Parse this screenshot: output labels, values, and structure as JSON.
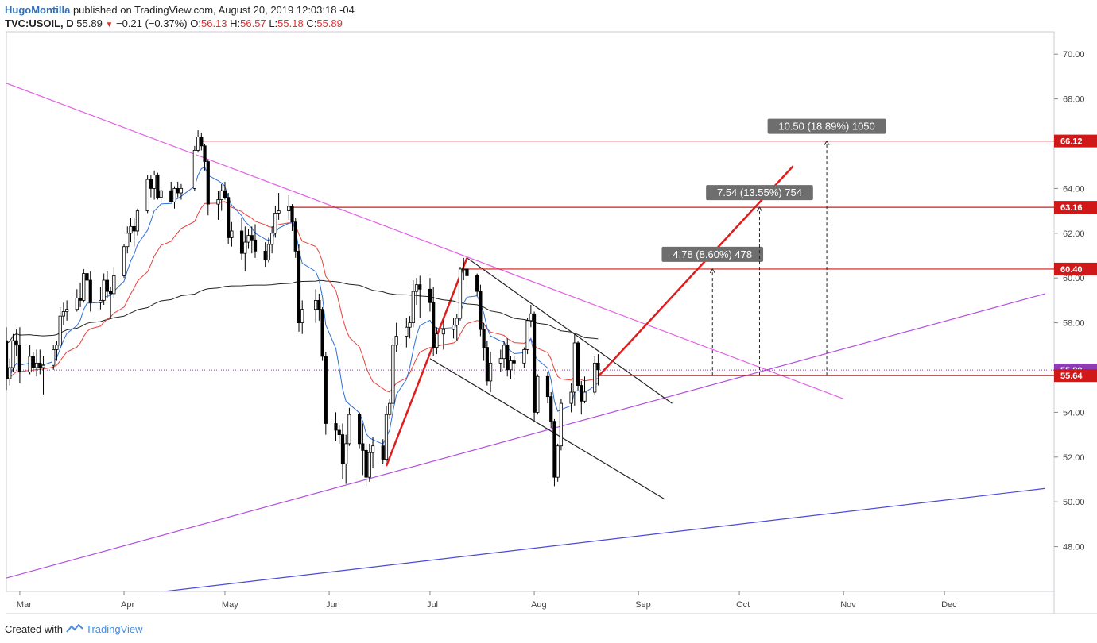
{
  "header": {
    "author": "HugoMontilla",
    "published": "published on TradingView.com, August 20, 2019 12:03:18 -04",
    "symbol": "TVC:USOIL, D",
    "last": "55.89",
    "change": "−0.21 (−0.37%)",
    "o_label": "O:",
    "o_value": "56.13",
    "h_label": "H:",
    "h_value": "56.57",
    "l_label": "L:",
    "l_value": "55.18",
    "c_label": "C:",
    "c_value": "55.89"
  },
  "footer": {
    "created_with": "Created with",
    "brand": "TradingView"
  },
  "colors": {
    "up": "#ffffff",
    "down": "#000000",
    "outline": "#000000",
    "ema_fast": "#2e6fd8",
    "ema_slow": "#e8403a",
    "sma_long": "#222222",
    "trend_magenta": "#e45fe4",
    "trend_violet": "#b24fe0",
    "trend_blue": "#4a4ad8",
    "level_red": "#d01818",
    "proj_red": "#e01c1c",
    "last_price": "#8e3bb6",
    "axis_grey": "#e0e3eb"
  },
  "chart_data": {
    "type": "candlestick",
    "instrument": "TVC:USOIL",
    "interval": "D",
    "ylim": [
      46.0,
      71.0
    ],
    "y_ticks": [
      "48.00",
      "50.00",
      "52.00",
      "54.00",
      "56.00",
      "58.00",
      "60.00",
      "62.00",
      "64.00",
      "66.00",
      "68.00",
      "70.00"
    ],
    "x_ticks": [
      {
        "label": "Mar",
        "date": "2019-03-01"
      },
      {
        "label": "Apr",
        "date": "2019-04-01"
      },
      {
        "label": "May",
        "date": "2019-05-01"
      },
      {
        "label": "Jun",
        "date": "2019-06-01"
      },
      {
        "label": "Jul",
        "date": "2019-07-01"
      },
      {
        "label": "Aug",
        "date": "2019-08-01"
      },
      {
        "label": "Sep",
        "date": "2019-09-01"
      },
      {
        "label": "Oct",
        "date": "2019-10-01"
      },
      {
        "label": "Nov",
        "date": "2019-11-01"
      },
      {
        "label": "Dec",
        "date": "2019-12-01"
      }
    ],
    "xlim": [
      "2019-02-25",
      "2019-12-31"
    ],
    "price_labels": [
      {
        "value": "66.12",
        "bg": "#d01818"
      },
      {
        "value": "63.16",
        "bg": "#d01818"
      },
      {
        "value": "60.40",
        "bg": "#d01818"
      },
      {
        "value": "55.89",
        "bg": "#8e3bb6"
      },
      {
        "value": "55.64",
        "bg": "#d01818"
      }
    ],
    "horizontal_levels": [
      {
        "y": 66.12,
        "from": "2019-04-24"
      },
      {
        "y": 63.16,
        "from": "2019-05-20"
      },
      {
        "y": 60.4,
        "from": "2019-07-11"
      },
      {
        "y": 55.64,
        "from": "2019-08-20"
      }
    ],
    "measurements": [
      {
        "label": "4.78 (8.60%) 478",
        "date": "2019-09-23",
        "from": 55.64,
        "to": 60.4
      },
      {
        "label": "7.54 (13.55%) 754",
        "date": "2019-10-07",
        "from": 55.64,
        "to": 63.16
      },
      {
        "label": "10.50 (18.89%) 1050",
        "date": "2019-10-27",
        "from": 55.64,
        "to": 66.12
      }
    ],
    "trendlines": [
      {
        "name": "descending-resistance",
        "color": "#e45fe4",
        "x1": "2019-02-25",
        "y1": 68.7,
        "x2": "2019-11-01",
        "y2": 54.6
      },
      {
        "name": "ascending-support",
        "color": "#b24fe0",
        "x1": "2019-02-25",
        "y1": 46.6,
        "x2": "2019-12-31",
        "y2": 59.3
      },
      {
        "name": "long-term-support",
        "color": "#4a4ad8",
        "x1": "2019-04-13",
        "y1": 46.0,
        "x2": "2019-12-31",
        "y2": 50.6
      },
      {
        "name": "channel-upper",
        "color": "#222222",
        "x1": "2019-07-12",
        "y1": 60.9,
        "x2": "2019-09-11",
        "y2": 54.4
      },
      {
        "name": "channel-lower",
        "color": "#222222",
        "x1": "2019-07-01",
        "y1": 56.4,
        "x2": "2019-09-09",
        "y2": 50.1
      },
      {
        "name": "flagpole",
        "color": "#e01c1c",
        "x1": "2019-06-18",
        "y1": 51.6,
        "x2": "2019-07-12",
        "y2": 60.9
      },
      {
        "name": "projection",
        "color": "#e01c1c",
        "x1": "2019-08-20",
        "y1": 55.6,
        "x2": "2019-10-17",
        "y2": 65.0
      }
    ],
    "candles": [
      [
        "2019-02-25",
        57.2,
        57.8,
        55.0,
        55.5
      ],
      [
        "2019-02-26",
        55.5,
        56.4,
        55.2,
        56.0
      ],
      [
        "2019-02-27",
        56.0,
        57.5,
        55.8,
        57.2
      ],
      [
        "2019-02-28",
        57.2,
        57.7,
        56.5,
        57.0
      ],
      [
        "2019-03-01",
        57.0,
        57.8,
        55.3,
        55.8
      ],
      [
        "2019-03-04",
        55.8,
        57.0,
        55.7,
        56.5
      ],
      [
        "2019-03-05",
        56.5,
        56.7,
        55.8,
        56.0
      ],
      [
        "2019-03-06",
        56.0,
        56.8,
        55.6,
        56.2
      ],
      [
        "2019-03-07",
        56.2,
        56.8,
        55.7,
        56.0
      ],
      [
        "2019-03-08",
        56.0,
        56.5,
        54.8,
        56.1
      ],
      [
        "2019-03-11",
        56.1,
        57.0,
        55.9,
        56.8
      ],
      [
        "2019-03-12",
        56.8,
        57.2,
        56.3,
        57.0
      ],
      [
        "2019-03-13",
        57.0,
        58.7,
        56.9,
        58.3
      ],
      [
        "2019-03-14",
        58.3,
        58.9,
        57.9,
        58.5
      ],
      [
        "2019-03-15",
        58.5,
        59.0,
        58.1,
        58.6
      ],
      [
        "2019-03-18",
        58.6,
        59.5,
        58.5,
        59.1
      ],
      [
        "2019-03-19",
        59.1,
        59.8,
        58.7,
        59.0
      ],
      [
        "2019-03-20",
        59.0,
        60.4,
        58.9,
        60.2
      ],
      [
        "2019-03-21",
        60.2,
        60.5,
        59.6,
        59.9
      ],
      [
        "2019-03-22",
        59.9,
        60.3,
        58.5,
        58.9
      ],
      [
        "2019-03-25",
        58.9,
        59.6,
        58.6,
        59.0
      ],
      [
        "2019-03-26",
        59.0,
        60.2,
        58.8,
        59.9
      ],
      [
        "2019-03-27",
        59.9,
        60.3,
        59.1,
        59.4
      ],
      [
        "2019-03-28",
        59.4,
        59.6,
        58.2,
        59.3
      ],
      [
        "2019-03-29",
        59.3,
        60.5,
        59.1,
        60.1
      ],
      [
        "2019-04-01",
        60.1,
        61.5,
        60.0,
        61.4
      ],
      [
        "2019-04-02",
        61.4,
        62.3,
        61.1,
        62.0
      ],
      [
        "2019-04-03",
        62.0,
        62.7,
        61.6,
        62.3
      ],
      [
        "2019-04-04",
        62.3,
        62.7,
        61.4,
        62.1
      ],
      [
        "2019-04-05",
        62.1,
        63.1,
        61.9,
        63.0
      ],
      [
        "2019-04-08",
        63.0,
        64.6,
        62.9,
        64.4
      ],
      [
        "2019-04-09",
        64.4,
        64.6,
        63.6,
        64.0
      ],
      [
        "2019-04-10",
        64.0,
        64.8,
        63.5,
        64.6
      ],
      [
        "2019-04-11",
        64.6,
        64.7,
        63.5,
        63.6
      ],
      [
        "2019-04-12",
        63.6,
        64.0,
        63.4,
        63.9
      ],
      [
        "2019-04-15",
        63.9,
        64.3,
        63.5,
        63.4
      ],
      [
        "2019-04-16",
        63.4,
        64.1,
        63.1,
        64.0
      ],
      [
        "2019-04-17",
        64.0,
        64.3,
        63.6,
        63.8
      ],
      [
        "2019-04-18",
        63.8,
        64.2,
        63.5,
        64.0
      ],
      [
        "2019-04-22",
        64.0,
        65.9,
        63.9,
        65.7
      ],
      [
        "2019-04-23",
        65.7,
        66.6,
        65.6,
        66.3
      ],
      [
        "2019-04-24",
        66.3,
        66.5,
        65.7,
        65.9
      ],
      [
        "2019-04-25",
        65.9,
        66.0,
        64.8,
        65.2
      ],
      [
        "2019-04-26",
        65.2,
        65.3,
        62.8,
        63.3
      ],
      [
        "2019-04-29",
        63.3,
        63.9,
        62.6,
        63.5
      ],
      [
        "2019-04-30",
        63.5,
        64.2,
        63.0,
        63.9
      ],
      [
        "2019-05-01",
        63.9,
        64.3,
        63.5,
        63.6
      ],
      [
        "2019-05-02",
        63.6,
        63.8,
        61.5,
        61.8
      ],
      [
        "2019-05-03",
        61.8,
        62.5,
        61.4,
        62.1
      ],
      [
        "2019-05-06",
        62.1,
        62.7,
        60.8,
        61.1
      ],
      [
        "2019-05-07",
        61.1,
        62.3,
        60.3,
        61.6
      ],
      [
        "2019-05-08",
        61.6,
        62.2,
        61.3,
        61.9
      ],
      [
        "2019-05-09",
        61.9,
        62.3,
        61.1,
        61.7
      ],
      [
        "2019-05-10",
        61.7,
        62.4,
        60.9,
        61.2
      ],
      [
        "2019-05-13",
        61.2,
        61.6,
        60.5,
        60.8
      ],
      [
        "2019-05-14",
        60.8,
        61.8,
        60.7,
        61.5
      ],
      [
        "2019-05-15",
        61.5,
        62.3,
        61.1,
        62.0
      ],
      [
        "2019-05-16",
        62.0,
        63.2,
        61.8,
        62.9
      ],
      [
        "2019-05-17",
        62.9,
        63.8,
        62.6,
        63.0
      ],
      [
        "2019-05-20",
        63.0,
        63.7,
        62.6,
        63.2
      ],
      [
        "2019-05-21",
        63.2,
        63.3,
        62.1,
        62.5
      ],
      [
        "2019-05-22",
        62.5,
        62.7,
        60.9,
        61.2
      ],
      [
        "2019-05-23",
        61.2,
        61.5,
        57.6,
        58.0
      ],
      [
        "2019-05-24",
        58.0,
        59.0,
        57.5,
        58.6
      ],
      [
        "2019-05-28",
        58.6,
        59.5,
        58.0,
        59.0
      ],
      [
        "2019-05-29",
        59.0,
        59.3,
        58.1,
        58.6
      ],
      [
        "2019-05-30",
        58.6,
        58.7,
        56.3,
        56.5
      ],
      [
        "2019-05-31",
        56.5,
        56.7,
        53.0,
        53.5
      ],
      [
        "2019-06-03",
        53.5,
        54.0,
        52.7,
        53.2
      ],
      [
        "2019-06-04",
        53.2,
        53.4,
        52.6,
        53.0
      ],
      [
        "2019-06-05",
        53.0,
        53.5,
        51.0,
        51.7
      ],
      [
        "2019-06-06",
        51.7,
        53.0,
        50.8,
        52.6
      ],
      [
        "2019-06-07",
        52.6,
        54.2,
        52.5,
        53.9
      ],
      [
        "2019-06-10",
        53.9,
        54.0,
        52.4,
        52.6
      ],
      [
        "2019-06-11",
        52.6,
        53.5,
        51.2,
        52.3
      ],
      [
        "2019-06-12",
        52.3,
        52.6,
        50.7,
        51.1
      ],
      [
        "2019-06-13",
        51.1,
        52.6,
        50.9,
        52.2
      ],
      [
        "2019-06-14",
        52.2,
        52.9,
        51.5,
        52.5
      ],
      [
        "2019-06-17",
        52.5,
        52.8,
        51.7,
        51.9
      ],
      [
        "2019-06-18",
        51.9,
        54.3,
        51.8,
        53.9
      ],
      [
        "2019-06-19",
        53.9,
        54.6,
        53.7,
        54.4
      ],
      [
        "2019-06-20",
        54.4,
        57.3,
        54.3,
        57.0
      ],
      [
        "2019-06-21",
        57.0,
        58.0,
        56.7,
        57.4
      ],
      [
        "2019-06-24",
        57.4,
        58.2,
        56.9,
        57.8
      ],
      [
        "2019-06-25",
        57.8,
        58.3,
        57.3,
        58.0
      ],
      [
        "2019-06-26",
        58.0,
        59.9,
        57.8,
        59.4
      ],
      [
        "2019-06-27",
        59.4,
        60.0,
        58.8,
        59.7
      ],
      [
        "2019-06-28",
        59.7,
        60.1,
        58.2,
        59.5
      ],
      [
        "2019-07-01",
        59.5,
        60.0,
        58.5,
        58.9
      ],
      [
        "2019-07-02",
        58.9,
        59.6,
        56.5,
        56.9
      ],
      [
        "2019-07-03",
        56.9,
        57.8,
        56.6,
        57.5
      ],
      [
        "2019-07-05",
        57.5,
        58.1,
        56.8,
        57.7
      ],
      [
        "2019-07-08",
        57.7,
        58.2,
        57.3,
        57.9
      ],
      [
        "2019-07-09",
        57.9,
        58.4,
        57.2,
        58.2
      ],
      [
        "2019-07-10",
        58.2,
        60.5,
        58.1,
        60.4
      ],
      [
        "2019-07-11",
        60.4,
        60.9,
        59.9,
        60.4
      ],
      [
        "2019-07-12",
        60.4,
        60.8,
        59.6,
        60.1
      ],
      [
        "2019-07-15",
        60.1,
        60.2,
        59.2,
        59.4
      ],
      [
        "2019-07-16",
        59.4,
        59.7,
        57.4,
        57.7
      ],
      [
        "2019-07-17",
        57.7,
        58.0,
        56.3,
        56.9
      ],
      [
        "2019-07-18",
        56.9,
        57.2,
        55.2,
        55.4
      ],
      [
        "2019-07-19",
        55.4,
        56.7,
        54.9,
        56.2
      ],
      [
        "2019-07-22",
        56.2,
        56.8,
        55.8,
        56.4
      ],
      [
        "2019-07-23",
        56.4,
        57.2,
        56.0,
        57.0
      ],
      [
        "2019-07-24",
        57.0,
        57.3,
        55.6,
        55.9
      ],
      [
        "2019-07-25",
        55.9,
        56.5,
        55.5,
        56.3
      ],
      [
        "2019-07-26",
        56.3,
        56.5,
        55.7,
        56.2
      ],
      [
        "2019-07-29",
        56.2,
        56.9,
        56.0,
        56.8
      ],
      [
        "2019-07-30",
        56.8,
        58.2,
        56.6,
        58.1
      ],
      [
        "2019-07-31",
        58.1,
        58.8,
        57.8,
        58.4
      ],
      [
        "2019-08-01",
        58.4,
        58.5,
        53.6,
        54.0
      ],
      [
        "2019-08-02",
        54.0,
        55.7,
        53.9,
        55.6
      ],
      [
        "2019-08-05",
        55.6,
        55.8,
        54.4,
        54.7
      ],
      [
        "2019-08-06",
        54.7,
        54.9,
        53.3,
        53.6
      ],
      [
        "2019-08-07",
        53.6,
        53.7,
        50.7,
        51.1
      ],
      [
        "2019-08-08",
        51.1,
        52.6,
        50.9,
        52.5
      ],
      [
        "2019-08-09",
        52.5,
        54.6,
        52.3,
        54.4
      ],
      [
        "2019-08-12",
        54.4,
        55.3,
        54.0,
        54.9
      ],
      [
        "2019-08-13",
        54.9,
        57.5,
        54.3,
        57.1
      ],
      [
        "2019-08-14",
        57.1,
        57.2,
        55.0,
        55.2
      ],
      [
        "2019-08-15",
        55.2,
        55.4,
        53.9,
        54.5
      ],
      [
        "2019-08-16",
        54.5,
        55.6,
        54.4,
        54.9
      ],
      [
        "2019-08-19",
        54.9,
        56.5,
        54.8,
        56.2
      ],
      [
        "2019-08-20",
        56.2,
        56.6,
        55.2,
        55.9
      ]
    ]
  }
}
